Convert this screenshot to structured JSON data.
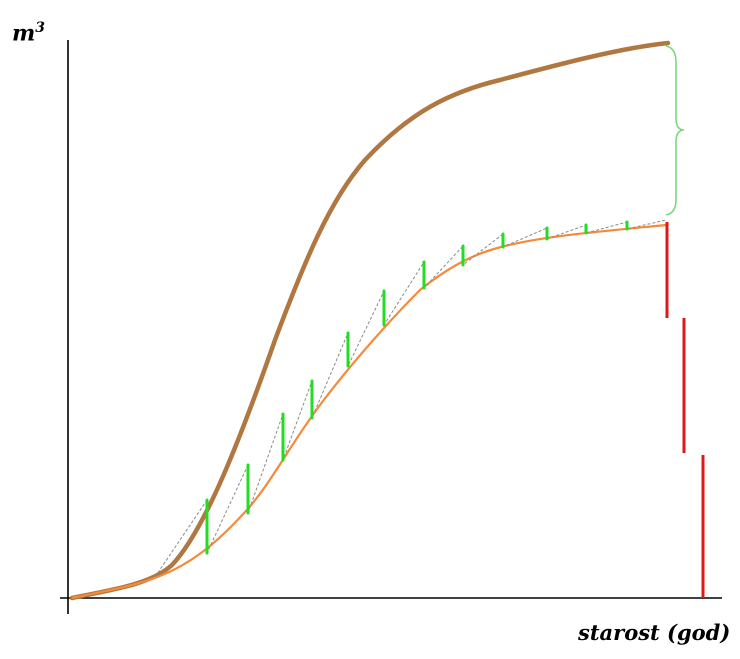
{
  "labels": {
    "y_axis_base": "m",
    "y_axis_exponent": "3",
    "x_axis": "starost (god)"
  },
  "colors": {
    "axis": "#000000",
    "upper_curve": "#b07840",
    "lower_curve": "#f58a3a",
    "sawtooth": "#8a8a8a",
    "increment_marks": "#22dd22",
    "difference_brace": "#7fd67f",
    "removal_marks": "#e01818"
  }
}
